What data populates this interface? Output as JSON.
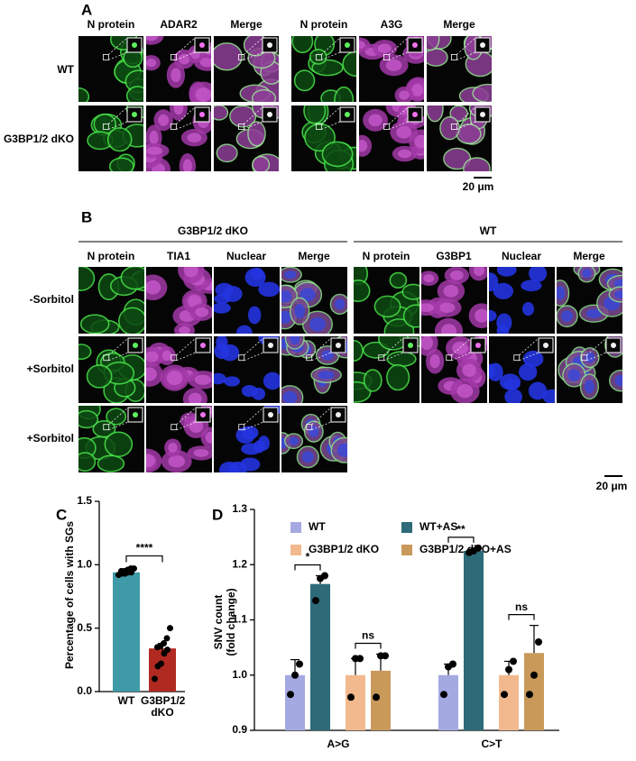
{
  "panel_a": {
    "label": "A",
    "groups": [
      {
        "columns": [
          "N protein",
          "ADAR2",
          "Merge"
        ]
      },
      {
        "columns": [
          "N protein",
          "A3G",
          "Merge"
        ]
      }
    ],
    "rows": [
      "WT",
      "G3BP1/2 dKO"
    ],
    "scale_bar": "20 μm"
  },
  "panel_b": {
    "label": "B",
    "groups": [
      {
        "title": "G3BP1/2 dKO",
        "columns": [
          "N protein",
          "TIA1",
          "Nuclear",
          "Merge"
        ]
      },
      {
        "title": "WT",
        "columns": [
          "N protein",
          "G3BP1",
          "Nuclear",
          "Merge"
        ]
      }
    ],
    "rows": [
      "-Sorbitol",
      "+Sorbitol",
      "+Sorbitol"
    ],
    "scale_bar": "20 μm"
  },
  "chart_data": [
    {
      "type": "bar",
      "panel": "C",
      "ylabel": "Percentage of cells with SGs",
      "categories": [
        "WT",
        "G3BP1/2 dKO"
      ],
      "values": [
        0.94,
        0.34
      ],
      "errors": [
        0.01,
        0.04
      ],
      "colors": [
        "#3e9aa6",
        "#b02a22"
      ],
      "points": [
        [
          0.92,
          0.93,
          0.93,
          0.94,
          0.94,
          0.95,
          0.95,
          0.96,
          0.97,
          0.97
        ],
        [
          0.1,
          0.2,
          0.22,
          0.3,
          0.33,
          0.35,
          0.36,
          0.38,
          0.42,
          0.5
        ]
      ],
      "ylim": [
        0,
        1.5
      ],
      "yticks": [
        {
          "value": 0,
          "label": "0.0"
        },
        0.5,
        {
          "value": 1,
          "label": "1.0"
        },
        1.5
      ],
      "significance": "****"
    },
    {
      "type": "grouped_bar",
      "panel": "D",
      "ylabel": [
        "SNV count",
        "(fold change)"
      ],
      "categories": [
        "A>G",
        "C>T"
      ],
      "series": [
        {
          "name": "WT",
          "color": "#a5a9e2",
          "values": [
            1.0,
            1.0
          ],
          "errors": [
            0.028,
            0.02
          ],
          "points": [
            [
              0.965,
              1.0,
              1.02
            ],
            [
              0.965,
              1.015,
              1.02
            ]
          ]
        },
        {
          "name": "WT+AS",
          "color": "#2d6b78",
          "values": [
            1.165,
            1.225
          ],
          "errors": [
            0.015,
            0.003
          ],
          "points": [
            [
              1.135,
              1.175,
              1.18
            ],
            [
              1.222,
              1.225,
              1.23
            ]
          ]
        },
        {
          "name": "G3BP1/2 dKO",
          "color": "#f2b98e",
          "values": [
            1.0,
            1.0
          ],
          "errors": [
            0.03,
            0.025
          ],
          "points": [
            [
              0.96,
              1.03,
              1.03
            ],
            [
              0.965,
              1.01,
              1.025
            ]
          ]
        },
        {
          "name": "G3BP1/2 dKO+AS",
          "color": "#c9995a",
          "values": [
            1.008,
            1.04
          ],
          "errors": [
            0.03,
            0.05
          ],
          "points": [
            [
              0.96,
              1.035,
              1.035
            ],
            [
              0.965,
              1.0,
              1.06
            ]
          ]
        }
      ],
      "ylim": [
        0.9,
        1.3
      ],
      "yticks": [
        0.9,
        {
          "value": 1,
          "label": "1.0"
        },
        1.1,
        1.2,
        1.3
      ],
      "significance": [
        [
          "*",
          "ns"
        ],
        [
          "**",
          "ns"
        ]
      ]
    }
  ]
}
